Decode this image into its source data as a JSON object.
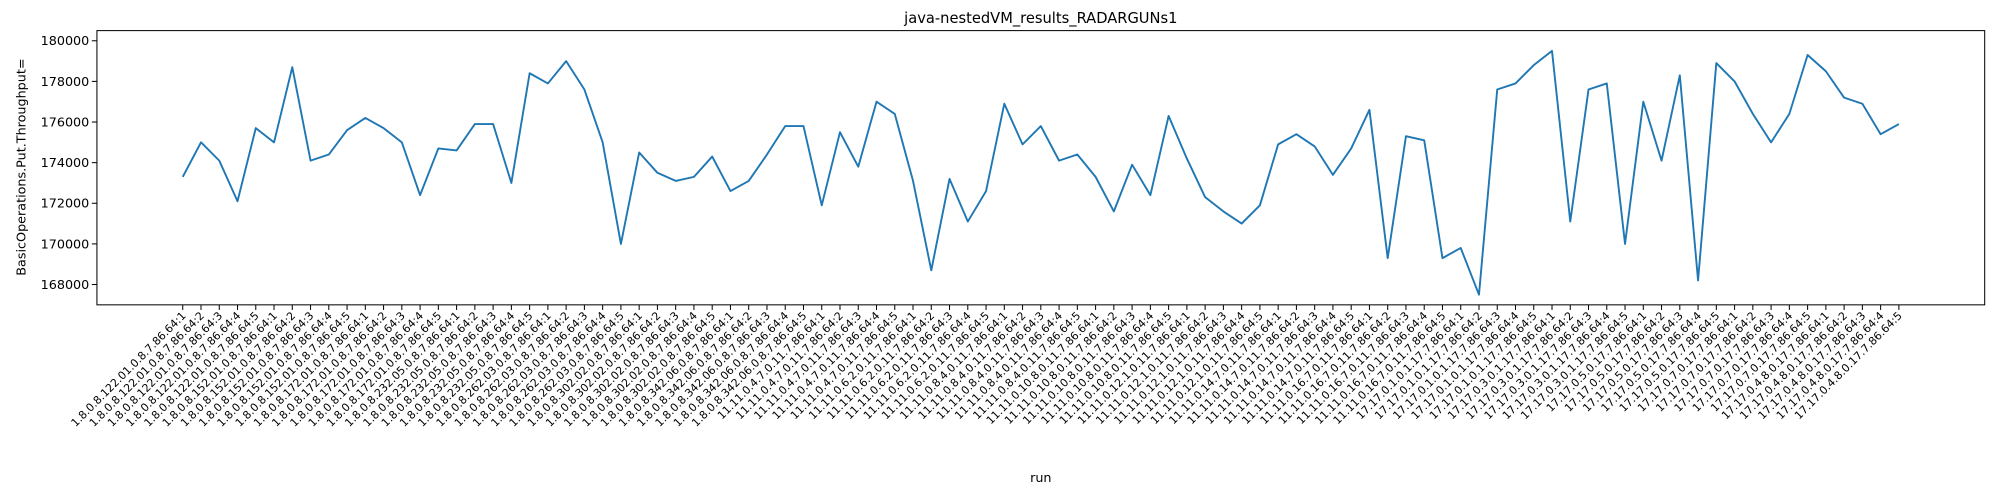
{
  "chart_data": {
    "type": "line",
    "title": "java-nestedVM_results_RADARGUNs1",
    "x_label": "run",
    "y_label": "BasicOperations.Put.Throughput=",
    "categories": [
      "1.8.0.8.122.01.0.8.7.86.64:1",
      "1.8.0.8.122.01.0.8.7.86.64:2",
      "1.8.0.8.122.01.0.8.7.86.64:3",
      "1.8.0.8.122.01.0.8.7.86.64:4",
      "1.8.0.8.122.01.0.8.7.86.64:5",
      "1.8.0.8.152.01.0.8.7.86.64:1",
      "1.8.0.8.152.01.0.8.7.86.64:2",
      "1.8.0.8.152.01.0.8.7.86.64:3",
      "1.8.0.8.152.01.0.8.7.86.64:4",
      "1.8.0.8.152.01.0.8.7.86.64:5",
      "1.8.0.8.172.01.0.8.7.86.64:1",
      "1.8.0.8.172.01.0.8.7.86.64:2",
      "1.8.0.8.172.01.0.8.7.86.64:3",
      "1.8.0.8.172.01.0.8.7.86.64:4",
      "1.8.0.8.172.01.0.8.7.86.64:5",
      "1.8.0.8.232.05.0.8.7.86.64:1",
      "1.8.0.8.232.05.0.8.7.86.64:2",
      "1.8.0.8.232.05.0.8.7.86.64:3",
      "1.8.0.8.232.05.0.8.7.86.64:4",
      "1.8.0.8.232.05.0.8.7.86.64:5",
      "1.8.0.8.262.03.0.8.7.86.64:1",
      "1.8.0.8.262.03.0.8.7.86.64:2",
      "1.8.0.8.262.03.0.8.7.86.64:3",
      "1.8.0.8.262.03.0.8.7.86.64:4",
      "1.8.0.8.262.03.0.8.7.86.64:5",
      "1.8.0.8.302.02.0.8.7.86.64:1",
      "1.8.0.8.302.02.0.8.7.86.64:2",
      "1.8.0.8.302.02.0.8.7.86.64:3",
      "1.8.0.8.302.02.0.8.7.86.64:4",
      "1.8.0.8.302.02.0.8.7.86.64:5",
      "1.8.0.8.342.06.0.8.7.86.64:1",
      "1.8.0.8.342.06.0.8.7.86.64:2",
      "1.8.0.8.342.06.0.8.7.86.64:3",
      "1.8.0.8.342.06.0.8.7.86.64:4",
      "1.8.0.8.342.06.0.8.7.86.64:5",
      "11.11.0.4.7.0.11.7.86.64:1",
      "11.11.0.4.7.0.11.7.86.64:2",
      "11.11.0.4.7.0.11.7.86.64:3",
      "11.11.0.4.7.0.11.7.86.64:4",
      "11.11.0.4.7.0.11.7.86.64:5",
      "11.11.0.6.2.0.11.7.86.64:1",
      "11.11.0.6.2.0.11.7.86.64:2",
      "11.11.0.6.2.0.11.7.86.64:3",
      "11.11.0.6.2.0.11.7.86.64:4",
      "11.11.0.6.2.0.11.7.86.64:5",
      "11.11.0.8.4.0.11.7.86.64:1",
      "11.11.0.8.4.0.11.7.86.64:2",
      "11.11.0.8.4.0.11.7.86.64:3",
      "11.11.0.8.4.0.11.7.86.64:4",
      "11.11.0.8.4.0.11.7.86.64:5",
      "11.11.0.10.8.0.11.7.86.64:1",
      "11.11.0.10.8.0.11.7.86.64:2",
      "11.11.0.10.8.0.11.7.86.64:3",
      "11.11.0.10.8.0.11.7.86.64:4",
      "11.11.0.10.8.0.11.7.86.64:5",
      "11.11.0.12.1.0.11.7.86.64:1",
      "11.11.0.12.1.0.11.7.86.64:2",
      "11.11.0.12.1.0.11.7.86.64:3",
      "11.11.0.12.1.0.11.7.86.64:4",
      "11.11.0.12.1.0.11.7.86.64:5",
      "11.11.0.14.7.0.11.7.86.64:1",
      "11.11.0.14.7.0.11.7.86.64:2",
      "11.11.0.14.7.0.11.7.86.64:3",
      "11.11.0.14.7.0.11.7.86.64:4",
      "11.11.0.14.7.0.11.7.86.64:5",
      "11.11.0.16.7.0.11.7.86.64:1",
      "11.11.0.16.7.0.11.7.86.64:2",
      "11.11.0.16.7.0.11.7.86.64:3",
      "11.11.0.16.7.0.11.7.86.64:4",
      "11.11.0.16.7.0.11.7.86.64:5",
      "17.17.0.1.0.1.17.7.86.64:1",
      "17.17.0.1.0.1.17.7.86.64:2",
      "17.17.0.1.0.1.17.7.86.64:3",
      "17.17.0.1.0.1.17.7.86.64:4",
      "17.17.0.1.0.1.17.7.86.64:5",
      "17.17.0.3.0.1.17.7.86.64:1",
      "17.17.0.3.0.1.17.7.86.64:2",
      "17.17.0.3.0.1.17.7.86.64:3",
      "17.17.0.3.0.1.17.7.86.64:4",
      "17.17.0.3.0.1.17.7.86.64:5",
      "17.17.0.5.0.17.7.86.64:1",
      "17.17.0.5.0.17.7.86.64:2",
      "17.17.0.5.0.17.7.86.64:3",
      "17.17.0.5.0.17.7.86.64:4",
      "17.17.0.5.0.17.7.86.64:5",
      "17.17.0.7.0.17.7.86.64:1",
      "17.17.0.7.0.17.7.86.64:2",
      "17.17.0.7.0.17.7.86.64:3",
      "17.17.0.7.0.17.7.86.64:4",
      "17.17.0.7.0.17.7.86.64:5",
      "17.17.0.4.8.0.17.7.86.64:1",
      "17.17.0.4.8.0.17.7.86.64:2",
      "17.17.0.4.8.0.17.7.86.64:3",
      "17.17.0.4.8.0.17.7.86.64:4",
      "17.17.0.4.8.0.17.7.86.64:5"
    ],
    "series": [
      {
        "name": "BasicOperations.Put.Throughput=",
        "color": "#1f77b4",
        "values": [
          173300,
          175000,
          174100,
          172100,
          175700,
          175000,
          178700,
          174100,
          174400,
          175600,
          176200,
          175700,
          175000,
          172400,
          174700,
          174600,
          175900,
          175900,
          173000,
          178400,
          177900,
          179000,
          177600,
          175000,
          170000,
          174500,
          173500,
          173100,
          173300,
          174300,
          172600,
          173100,
          174400,
          175800,
          175800,
          171900,
          175500,
          173800,
          177000,
          176400,
          173100,
          168700,
          173200,
          171100,
          172600,
          176900,
          174900,
          175800,
          174100,
          174400,
          173300,
          171600,
          173900,
          172400,
          176300,
          174200,
          172300,
          171600,
          171000,
          171900,
          174900,
          175400,
          174800,
          173400,
          174700,
          176600,
          169300,
          175300,
          175100,
          169300,
          169800,
          167500,
          177600,
          177900,
          178800,
          179500,
          171100,
          177600,
          177900,
          170000,
          177000,
          174100,
          178300,
          168200,
          178900,
          178000,
          176400,
          175000,
          176400,
          179300,
          178500,
          177200,
          176900,
          175400,
          175900
        ]
      }
    ],
    "ylim": [
      167000,
      180500
    ],
    "yticks": [
      168000,
      170000,
      172000,
      174000,
      176000,
      178000,
      180000
    ]
  }
}
